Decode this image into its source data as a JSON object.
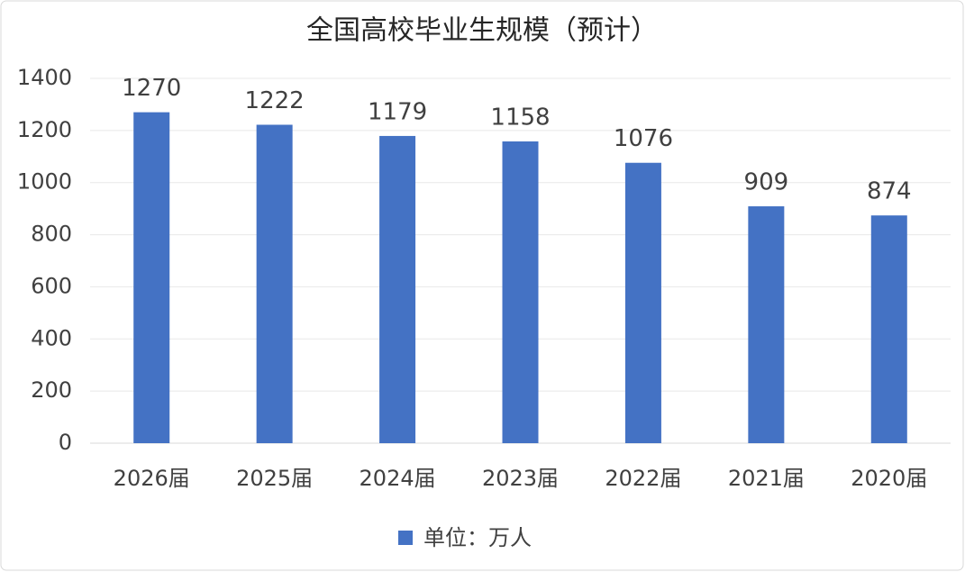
{
  "chart_data": {
    "type": "bar",
    "title": "全国高校毕业生规模（预计）",
    "categories": [
      "2026届",
      "2025届",
      "2024届",
      "2023届",
      "2022届",
      "2021届",
      "2020届"
    ],
    "series": [
      {
        "name": "单位：万人",
        "color": "#4472c4",
        "values": [
          1270,
          1222,
          1179,
          1158,
          1076,
          909,
          874
        ]
      }
    ],
    "ylim": [
      0,
      1400
    ],
    "yticks": [
      0,
      200,
      400,
      600,
      800,
      1000,
      1200,
      1400
    ],
    "grid": true,
    "legend": "bottom"
  }
}
